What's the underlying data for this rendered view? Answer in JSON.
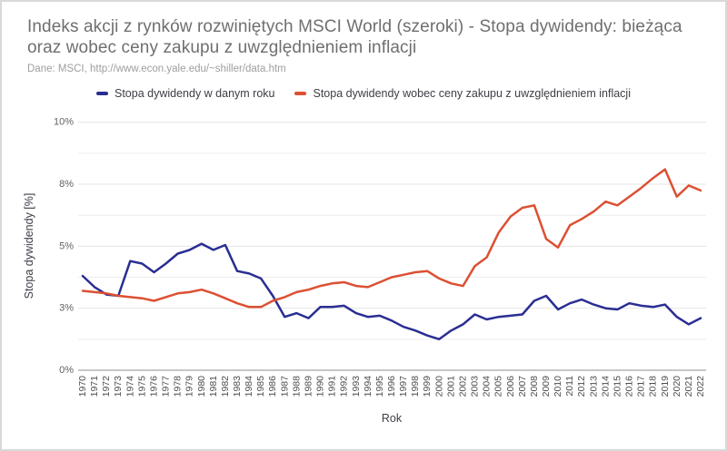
{
  "header": {
    "title": "Indeks akcji z rynków rozwiniętych MSCI World (szeroki) - Stopa dywidendy: bieżąca oraz wobec ceny zakupu z uwzględnieniem inflacji",
    "source": "Dane: MSCI, http://www.econ.yale.edu/~shiller/data.htm"
  },
  "chart_data": {
    "type": "line",
    "title": "Indeks akcji z rynków rozwiniętych MSCI World (szeroki) - Stopa dywidendy: bieżąca oraz wobec ceny zakupu z uwzględnieniem inflacji",
    "xlabel": "Rok",
    "ylabel": "Stopa dywidendy [%]",
    "ylim": [
      0,
      10
    ],
    "grid": true,
    "legend_position": "top",
    "yticks": [
      {
        "v": 0,
        "label": "0%"
      },
      {
        "v": 2.5,
        "label": "3%"
      },
      {
        "v": 5,
        "label": "5%"
      },
      {
        "v": 7.5,
        "label": "8%"
      },
      {
        "v": 10,
        "label": "10%"
      }
    ],
    "minor_gridlines": [
      1.25,
      3.75,
      6.25,
      8.75
    ],
    "x": [
      1970,
      1971,
      1972,
      1973,
      1974,
      1975,
      1976,
      1977,
      1978,
      1979,
      1980,
      1981,
      1982,
      1983,
      1984,
      1985,
      1986,
      1987,
      1988,
      1989,
      1990,
      1991,
      1992,
      1993,
      1994,
      1995,
      1996,
      1997,
      1998,
      1999,
      2000,
      2001,
      2002,
      2003,
      2004,
      2005,
      2006,
      2007,
      2008,
      2009,
      2010,
      2011,
      2012,
      2013,
      2014,
      2015,
      2016,
      2017,
      2018,
      2019,
      2020,
      2021,
      2022
    ],
    "series": [
      {
        "id": "current-year-yield",
        "name": "Stopa dywidendy w danym roku",
        "color": "#2a2e92",
        "values": [
          3.8,
          3.35,
          3.05,
          3.0,
          4.4,
          4.3,
          3.95,
          4.3,
          4.7,
          4.85,
          5.1,
          4.85,
          5.05,
          4.0,
          3.9,
          3.7,
          3.0,
          2.15,
          2.3,
          2.1,
          2.55,
          2.55,
          2.6,
          2.3,
          2.15,
          2.2,
          2.0,
          1.75,
          1.6,
          1.4,
          1.25,
          1.6,
          1.85,
          2.25,
          2.05,
          2.15,
          2.2,
          2.25,
          2.8,
          3.0,
          2.45,
          2.7,
          2.85,
          2.65,
          2.5,
          2.45,
          2.7,
          2.6,
          2.55,
          2.65,
          2.15,
          1.85,
          2.1
        ]
      },
      {
        "id": "yield-on-inflation-adjusted-cost",
        "name": "Stopa dywidendy wobec ceny zakupu z uwzględnieniem inflacji",
        "color": "#dc5033",
        "values": [
          3.2,
          3.15,
          3.1,
          3.0,
          2.95,
          2.9,
          2.8,
          2.95,
          3.1,
          3.15,
          3.25,
          3.1,
          2.9,
          2.7,
          2.55,
          2.55,
          2.8,
          2.95,
          3.15,
          3.25,
          3.4,
          3.5,
          3.55,
          3.4,
          3.35,
          3.55,
          3.75,
          3.85,
          3.95,
          4.0,
          3.7,
          3.5,
          3.4,
          4.2,
          4.55,
          5.55,
          6.2,
          6.55,
          6.65,
          5.3,
          4.95,
          5.85,
          6.1,
          6.4,
          6.8,
          6.65,
          7.0,
          7.35,
          7.75,
          8.1,
          7.0,
          7.45,
          7.25
        ]
      }
    ]
  }
}
